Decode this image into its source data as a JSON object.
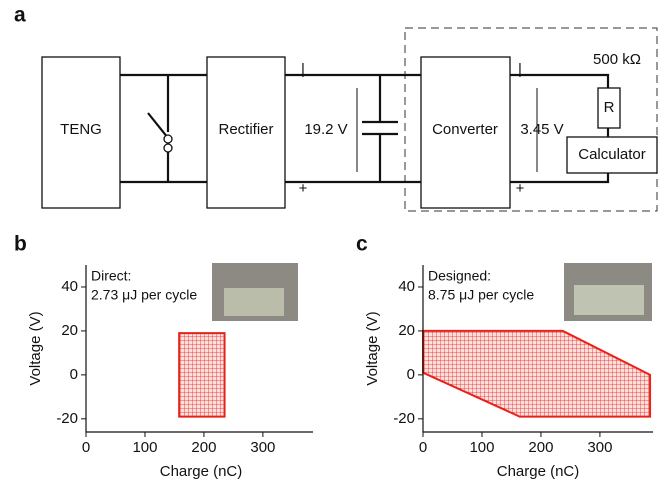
{
  "panel_labels": [
    "a",
    "b",
    "c"
  ],
  "diagram": {
    "blocks": [
      "TENG",
      "Rectifier",
      "Converter",
      "Calculator"
    ],
    "resistor": "R",
    "resistance": "500 kΩ",
    "voltages": [
      "19.2 V",
      "3.45 V"
    ],
    "polarity": [
      "|",
      "+",
      "|",
      "+"
    ]
  },
  "chart_data": [
    {
      "type": "line",
      "xlabel": "Charge (nC)",
      "ylabel": "Voltage (V)",
      "annotations": [
        "Direct:",
        "2.73 μJ per cycle"
      ],
      "x": [
        158,
        235,
        235,
        158,
        158
      ],
      "series": [
        {
          "color": "#e8221b",
          "values": [
            19,
            19,
            -19,
            -19,
            19
          ]
        }
      ],
      "xlim": [
        0,
        385
      ],
      "ylim": [
        -26,
        50
      ],
      "xticks": [
        0,
        100,
        200,
        300
      ],
      "yticks": [
        -20,
        0,
        20,
        40
      ]
    },
    {
      "type": "line",
      "xlabel": "Charge (nC)",
      "ylabel": "Voltage (V)",
      "annotations": [
        "Designed:",
        "8.75 μJ per cycle"
      ],
      "x": [
        0,
        237,
        385,
        385,
        164,
        0,
        0
      ],
      "series": [
        {
          "color": "#e8221b",
          "values": [
            20,
            20,
            0,
            -19,
            -19,
            1,
            20
          ]
        }
      ],
      "xlim": [
        0,
        390
      ],
      "ylim": [
        -26,
        50
      ],
      "xticks": [
        0,
        100,
        200,
        300
      ],
      "yticks": [
        -20,
        0,
        20,
        40
      ]
    }
  ]
}
